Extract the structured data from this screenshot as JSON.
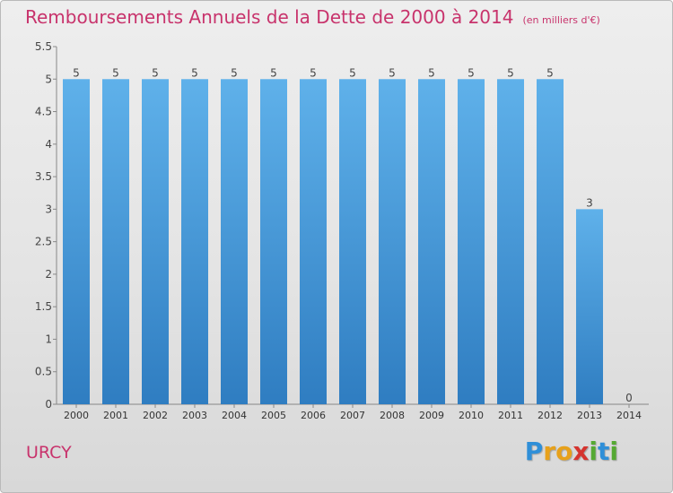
{
  "title": "Remboursements Annuels de la Dette de 2000 à 2014",
  "unit_label": "(en milliers d'€)",
  "town": "URCY",
  "logo_letters": [
    "P",
    "r",
    "o",
    "x",
    "i",
    "t",
    "i"
  ],
  "colors": {
    "title": "#c8336c",
    "bar_top": "#5fb1ea",
    "bar_bottom": "#2f7dc1",
    "axis": "#888888"
  },
  "chart_data": {
    "type": "bar",
    "title": "Remboursements Annuels de la Dette de 2000 à 2014",
    "subtitle": "(en milliers d'€)",
    "xlabel": "",
    "ylabel": "",
    "categories": [
      "2000",
      "2001",
      "2002",
      "2003",
      "2004",
      "2005",
      "2006",
      "2007",
      "2008",
      "2009",
      "2010",
      "2011",
      "2012",
      "2013",
      "2014"
    ],
    "values": [
      5,
      5,
      5,
      5,
      5,
      5,
      5,
      5,
      5,
      5,
      5,
      5,
      5,
      3,
      0
    ],
    "data_labels": [
      "5",
      "5",
      "5",
      "5",
      "5",
      "5",
      "5",
      "5",
      "5",
      "5",
      "5",
      "5",
      "5",
      "3",
      "0"
    ],
    "ylim": [
      0,
      5.5
    ],
    "yticks": [
      0,
      0.5,
      1,
      1.5,
      2,
      2.5,
      3,
      3.5,
      4,
      4.5,
      5,
      5.5
    ],
    "ytick_labels": [
      "0",
      "0.5",
      "1",
      "1.5",
      "2",
      "2.5",
      "3",
      "3.5",
      "4",
      "4.5",
      "5",
      "5.5"
    ],
    "grid": false,
    "legend": "none"
  }
}
